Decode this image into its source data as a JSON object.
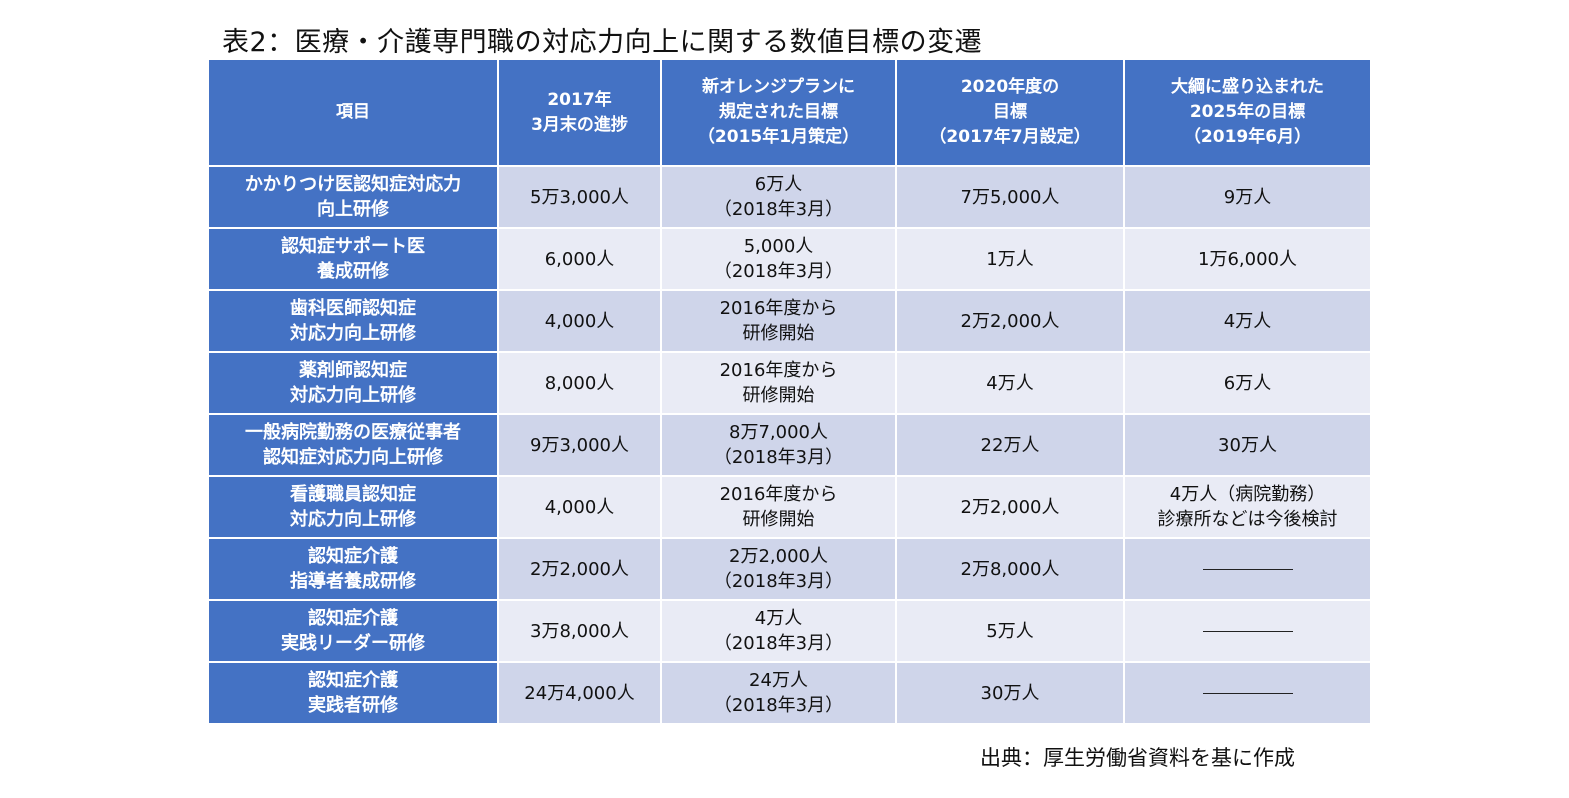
{
  "title": "表2：医療・介護専門職の対応力向上に関する数値目標の変遷",
  "headers": [
    [
      "項目"
    ],
    [
      "2017年",
      "3月末の進捗"
    ],
    [
      "新オレンジプランに",
      "規定された目標",
      "（2015年1月策定）"
    ],
    [
      "2020年度の",
      "目標",
      "（2017年7月設定）"
    ],
    [
      "大綱に盛り込まれた",
      "2025年の目標",
      "（2019年6月）"
    ]
  ],
  "rows": [
    {
      "item": [
        "かかりつけ医認知症対応力",
        "向上研修"
      ],
      "progress": [
        "5万3,000人"
      ],
      "orange": [
        "6万人",
        "（2018年3月）"
      ],
      "target2020": [
        "7万5,000人"
      ],
      "target2025": [
        "9万人"
      ]
    },
    {
      "item": [
        "認知症サポート医",
        "養成研修"
      ],
      "progress": [
        "6,000人"
      ],
      "orange": [
        "5,000人",
        "（2018年3月）"
      ],
      "target2020": [
        "1万人"
      ],
      "target2025": [
        "1万6,000人"
      ]
    },
    {
      "item": [
        "歯科医師認知症",
        "対応力向上研修"
      ],
      "progress": [
        "4,000人"
      ],
      "orange": [
        "2016年度から",
        "研修開始"
      ],
      "target2020": [
        "2万2,000人"
      ],
      "target2025": [
        "4万人"
      ]
    },
    {
      "item": [
        "薬剤師認知症",
        "対応力向上研修"
      ],
      "progress": [
        "8,000人"
      ],
      "orange": [
        "2016年度から",
        "研修開始"
      ],
      "target2020": [
        "4万人"
      ],
      "target2025": [
        "6万人"
      ]
    },
    {
      "item": [
        "一般病院勤務の医療従事者",
        "認知症対応力向上研修"
      ],
      "progress": [
        "9万3,000人"
      ],
      "orange": [
        "8万7,000人",
        "（2018年3月）"
      ],
      "target2020": [
        "22万人"
      ],
      "target2025": [
        "30万人"
      ]
    },
    {
      "item": [
        "看護職員認知症",
        "対応力向上研修"
      ],
      "progress": [
        "4,000人"
      ],
      "orange": [
        "2016年度から",
        "研修開始"
      ],
      "target2020": [
        "2万2,000人"
      ],
      "target2025": [
        "4万人（病院勤務）",
        "診療所などは今後検討"
      ]
    },
    {
      "item": [
        "認知症介護",
        "指導者養成研修"
      ],
      "progress": [
        "2万2,000人"
      ],
      "orange": [
        "2万2,000人",
        "（2018年3月）"
      ],
      "target2020": [
        "2万8,000人"
      ],
      "target2025": []
    },
    {
      "item": [
        "認知症介護",
        "実践リーダー研修"
      ],
      "progress": [
        "3万8,000人"
      ],
      "orange": [
        "4万人",
        "（2018年3月）"
      ],
      "target2020": [
        "5万人"
      ],
      "target2025": []
    },
    {
      "item": [
        "認知症介護",
        "実践者研修"
      ],
      "progress": [
        "24万4,000人"
      ],
      "orange": [
        "24万人",
        "（2018年3月）"
      ],
      "target2020": [
        "30万人"
      ],
      "target2025": []
    }
  ],
  "source": "出典：厚生労働省資料を基に作成"
}
